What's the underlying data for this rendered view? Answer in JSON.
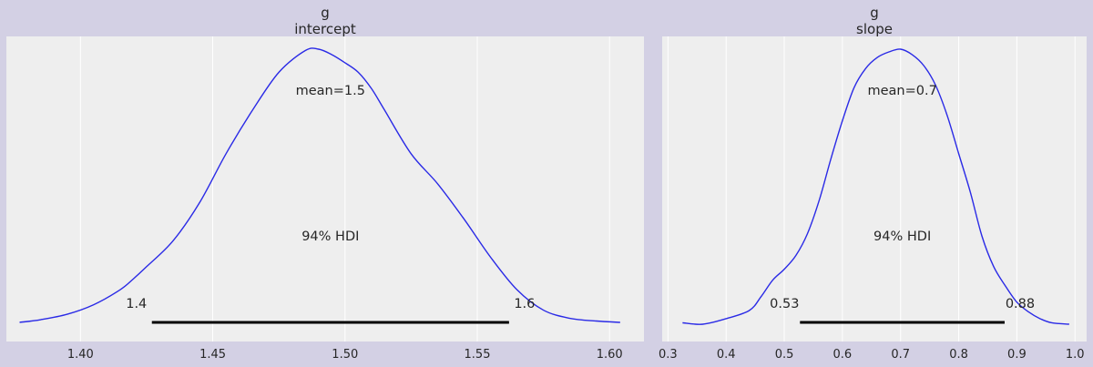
{
  "chart_data": [
    {
      "type": "line",
      "title": "g",
      "subtitle": "intercept",
      "xlabel": "",
      "ylabel": "",
      "xlim": [
        1.372,
        1.613
      ],
      "grid": true,
      "xticks": [
        1.4,
        1.45,
        1.5,
        1.55,
        1.6
      ],
      "xtick_labels": [
        "1.40",
        "1.45",
        "1.50",
        "1.55",
        "1.60"
      ],
      "density_x": [
        1.377,
        1.385,
        1.395,
        1.405,
        1.415,
        1.42,
        1.425,
        1.435,
        1.445,
        1.455,
        1.465,
        1.475,
        1.485,
        1.49,
        1.495,
        1.5,
        1.505,
        1.51,
        1.515,
        1.525,
        1.535,
        1.545,
        1.555,
        1.565,
        1.575,
        1.585,
        1.595,
        1.604
      ],
      "density_y": [
        0.0,
        0.01,
        0.03,
        0.065,
        0.12,
        0.16,
        0.205,
        0.3,
        0.44,
        0.62,
        0.78,
        0.92,
        1.0,
        1.005,
        0.985,
        0.955,
        0.92,
        0.86,
        0.78,
        0.62,
        0.51,
        0.38,
        0.24,
        0.12,
        0.045,
        0.015,
        0.005,
        0.0
      ],
      "mean_label": "mean=1.5",
      "hdi_label": "94% HDI",
      "hdi": [
        1.427,
        1.562
      ],
      "hdi_low_label": "1.4",
      "hdi_high_label": "1.6"
    },
    {
      "type": "line",
      "title": "g",
      "subtitle": "slope",
      "xlabel": "",
      "ylabel": "",
      "xlim": [
        0.29,
        1.02
      ],
      "grid": true,
      "xticks": [
        0.3,
        0.4,
        0.5,
        0.6,
        0.7,
        0.8,
        0.9,
        1.0
      ],
      "xtick_labels": [
        "0.3",
        "0.4",
        "0.5",
        "0.6",
        "0.7",
        "0.8",
        "0.9",
        "1.0"
      ],
      "density_x": [
        0.325,
        0.36,
        0.4,
        0.44,
        0.46,
        0.48,
        0.5,
        0.52,
        0.54,
        0.56,
        0.58,
        0.6,
        0.62,
        0.64,
        0.66,
        0.68,
        0.7,
        0.72,
        0.74,
        0.76,
        0.78,
        0.8,
        0.82,
        0.84,
        0.86,
        0.88,
        0.9,
        0.92,
        0.94,
        0.96,
        0.99
      ],
      "density_y": [
        0.005,
        0.0,
        0.02,
        0.05,
        0.1,
        0.16,
        0.2,
        0.25,
        0.33,
        0.45,
        0.6,
        0.74,
        0.86,
        0.93,
        0.97,
        0.99,
        1.0,
        0.98,
        0.94,
        0.87,
        0.76,
        0.62,
        0.48,
        0.32,
        0.21,
        0.14,
        0.08,
        0.045,
        0.02,
        0.005,
        0.0
      ],
      "mean_label": "mean=0.7",
      "hdi_label": "94% HDI",
      "hdi": [
        0.527,
        0.879
      ],
      "hdi_low_label": "0.53",
      "hdi_high_label": "0.88"
    }
  ],
  "colors": {
    "figure_bg": "#d3d0e4",
    "axes_bg": "#eeeeee",
    "grid": "#ffffff",
    "density": "#2a2ae6",
    "hdi_bar": "#000000",
    "text": "#262626"
  }
}
